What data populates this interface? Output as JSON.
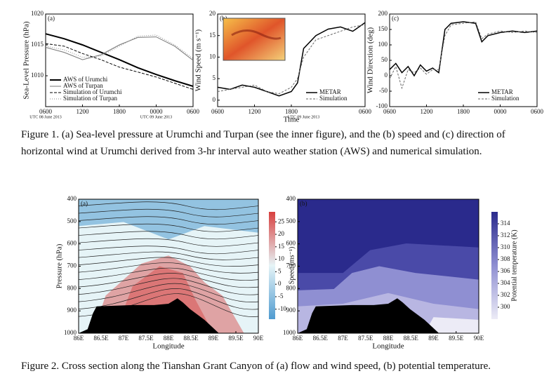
{
  "chart_data": [
    {
      "type": "line",
      "panel_label": "(a)",
      "ylabel": "Sea-Level Pressure (hPa)",
      "x": [
        0,
        3,
        6,
        9,
        12,
        15,
        18,
        21,
        24
      ],
      "xlim": [
        0,
        24
      ],
      "xticks": [
        {
          "value": 0,
          "label": "0600"
        },
        {
          "value": 6,
          "label": "1200"
        },
        {
          "value": 12,
          "label": "1800"
        },
        {
          "value": 18,
          "label": "0000"
        },
        {
          "value": 24,
          "label": "0600"
        }
      ],
      "date_labels": [
        {
          "value": 0,
          "label": "UTC 08 June 2013"
        },
        {
          "value": 18,
          "label": "UTC 09 June 2013"
        }
      ],
      "ylim": [
        1005,
        1020
      ],
      "yticks": [
        1010,
        1015,
        1020
      ],
      "legend": "lower left",
      "series": [
        {
          "name": "AWS of Urumchi",
          "color": "#000000",
          "width": 2,
          "dash": "none",
          "values": [
            1016.8,
            1016.0,
            1015.0,
            1013.8,
            1012.6,
            1011.3,
            1010.2,
            1009.2,
            1008.3
          ]
        },
        {
          "name": "AWS of Turpan",
          "color": "#777777",
          "width": 1,
          "dash": "none",
          "values": [
            1014.6,
            1013.8,
            1012.6,
            1013.4,
            1015.0,
            1016.2,
            1016.3,
            1014.8,
            1012.5
          ]
        },
        {
          "name": "Simulation of Urumchi",
          "color": "#000000",
          "width": 1,
          "dash": "4 2",
          "values": [
            1015.2,
            1014.8,
            1013.6,
            1012.6,
            1011.4,
            1010.6,
            1009.8,
            1008.8,
            1007.8
          ]
        },
        {
          "name": "Simulation of Turpan",
          "color": "#888888",
          "width": 1,
          "dash": "1 2",
          "values": [
            1014.8,
            1014.2,
            1013.0,
            1013.2,
            1014.8,
            1016.4,
            1016.6,
            1015.0,
            1012.8
          ]
        }
      ]
    },
    {
      "type": "line",
      "panel_label": "(b)",
      "ylabel": "Wind Speed (m s⁻¹)",
      "xlabel": "Time",
      "inset_map": true,
      "x": [
        0,
        2,
        4,
        6,
        8,
        10,
        12,
        13,
        14,
        16,
        18,
        20,
        22,
        24
      ],
      "xlim": [
        0,
        24
      ],
      "xticks": [
        {
          "value": 0,
          "label": "0600"
        },
        {
          "value": 6,
          "label": "1200"
        },
        {
          "value": 12,
          "label": "1800"
        },
        {
          "value": 24,
          "label": "0600"
        }
      ],
      "date_labels": [
        {
          "value": 14,
          "label": "UTC 09 June 2013"
        }
      ],
      "ylim": [
        -1.5,
        20
      ],
      "yticks": [
        0,
        5,
        10,
        15,
        20
      ],
      "legend": "lower right",
      "series": [
        {
          "name": "METAR",
          "color": "#000000",
          "width": 1.5,
          "dash": "none",
          "values": [
            3,
            2.5,
            3.5,
            3,
            2,
            1,
            2,
            4,
            12,
            15,
            16.5,
            17,
            16,
            18
          ]
        },
        {
          "name": "Simulation",
          "color": "#666666",
          "width": 1,
          "dash": "3 2",
          "values": [
            2,
            2.5,
            3,
            3.5,
            2,
            1.5,
            3,
            5,
            10,
            14,
            15,
            16,
            17,
            17.5
          ]
        }
      ]
    },
    {
      "type": "line",
      "panel_label": "(c)",
      "ylabel": "Wind Direction (deg)",
      "x": [
        0,
        1,
        2,
        3,
        4,
        5,
        6,
        7,
        8,
        9,
        10,
        12,
        14,
        15,
        16,
        18,
        20,
        22,
        24
      ],
      "xlim": [
        0,
        24
      ],
      "xticks": [
        {
          "value": 0,
          "label": "0600"
        },
        {
          "value": 6,
          "label": "1200"
        },
        {
          "value": 12,
          "label": "1800"
        },
        {
          "value": 18,
          "label": "0000"
        },
        {
          "value": 24,
          "label": "0600"
        }
      ],
      "ylim": [
        -100,
        200
      ],
      "yticks": [
        -100,
        -50,
        0,
        50,
        100,
        150,
        200
      ],
      "legend": "lower right",
      "series": [
        {
          "name": "METAR",
          "color": "#000000",
          "width": 1.5,
          "dash": "none",
          "values": [
            20,
            40,
            10,
            30,
            0,
            35,
            15,
            25,
            10,
            150,
            170,
            175,
            170,
            110,
            130,
            140,
            145,
            140,
            145
          ]
        },
        {
          "name": "Simulation",
          "color": "#666666",
          "width": 1,
          "dash": "3 2",
          "values": [
            -10,
            30,
            -40,
            20,
            10,
            25,
            5,
            20,
            20,
            130,
            165,
            170,
            175,
            120,
            135,
            145,
            140,
            145,
            140
          ]
        }
      ]
    },
    {
      "type": "contour",
      "panel_label": "(a)",
      "xlabel": "Longitude",
      "ylabel": "Pressure (hPa)",
      "streamlines": true,
      "xlim": [
        86,
        90
      ],
      "xticks": [
        {
          "value": 86,
          "label": "86E"
        },
        {
          "value": 86.5,
          "label": "86.5E"
        },
        {
          "value": 87,
          "label": "87E"
        },
        {
          "value": 87.5,
          "label": "87.5E"
        },
        {
          "value": 88,
          "label": "88E"
        },
        {
          "value": 88.5,
          "label": "88.5E"
        },
        {
          "value": 89,
          "label": "89E"
        },
        {
          "value": 89.5,
          "label": "89.5E"
        },
        {
          "value": 90,
          "label": "90E"
        }
      ],
      "ylim": [
        1000,
        400
      ],
      "yticks": [
        400,
        500,
        600,
        700,
        800,
        900,
        1000
      ],
      "colorbar_label": "Speed (ms⁻¹)",
      "clim": [
        -14,
        29
      ],
      "cticks": [
        -10,
        -5,
        0,
        5,
        10,
        15,
        20,
        25
      ],
      "colormap": [
        "#4f9bd0",
        "#e6f4f7",
        "#d8403f"
      ]
    },
    {
      "type": "contour",
      "panel_label": "(b)",
      "xlabel": "Longitude",
      "xlim": [
        86,
        90
      ],
      "xticks": [
        {
          "value": 86,
          "label": "86E"
        },
        {
          "value": 86.5,
          "label": "86.5E"
        },
        {
          "value": 87,
          "label": "87E"
        },
        {
          "value": 87.5,
          "label": "87.5E"
        },
        {
          "value": 88,
          "label": "88E"
        },
        {
          "value": 88.5,
          "label": "88.5E"
        },
        {
          "value": 89,
          "label": "89E"
        },
        {
          "value": 89.5,
          "label": "89.5E"
        },
        {
          "value": 90,
          "label": "90E"
        }
      ],
      "ylim": [
        1000,
        400
      ],
      "yticks": [
        400,
        500,
        600,
        700,
        800,
        900,
        1000
      ],
      "colorbar_label": "Potential temperature (K)",
      "clim": [
        298,
        316
      ],
      "cticks": [
        300,
        302,
        304,
        306,
        308,
        310,
        312,
        314
      ],
      "colormap": [
        "#ecebf6",
        "#8f8fd2",
        "#2a2a8c"
      ]
    }
  ],
  "captions": [
    "Figure 1. (a) Sea-level pressure at Urumchi and Turpan (see the inner figure), and the (b) speed and (c) direction of horizontal wind at Urumchi derived from 3-hr interval auto weather station (AWS) and numerical simulation.",
    "Figure 2. Cross section along the Tianshan Grant Canyon of (a) flow and wind speed, (b) potential temperature."
  ]
}
